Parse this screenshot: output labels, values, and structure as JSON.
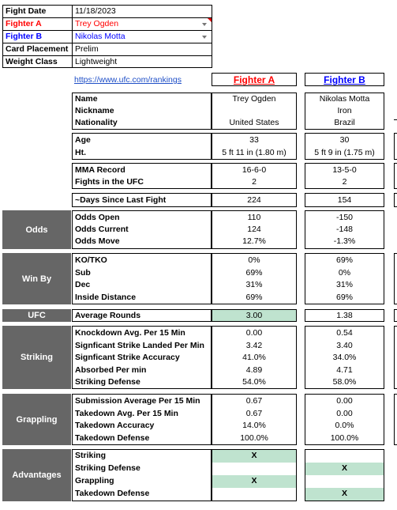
{
  "info": {
    "rows": [
      {
        "label": "Fight Date",
        "value": "11/18/2023"
      },
      {
        "label": "Fighter A",
        "value": "Trey Ogden"
      },
      {
        "label": "Fighter B",
        "value": "Nikolas Motta"
      },
      {
        "label": "Card Placement",
        "value": "Prelim"
      },
      {
        "label": "Weight Class",
        "value": "Lightweight"
      }
    ]
  },
  "header": {
    "link": "https://www.ufc.com/rankings",
    "fighter_a": "Fighter A",
    "fighter_b": "Fighter B"
  },
  "sections": {
    "bio": {
      "labels": [
        "Name",
        "Nickname",
        "Nationality"
      ],
      "a": [
        "Trey Ogden",
        "",
        "United States"
      ],
      "b": [
        "Nikolas Motta",
        "Iron",
        "Brazil"
      ]
    },
    "physical": {
      "labels": [
        "Age",
        "Ht."
      ],
      "a": [
        "33",
        "5 ft 11 in (1.80 m)"
      ],
      "b": [
        "30",
        "5 ft 9 in (1.75 m)"
      ]
    },
    "record": {
      "labels": [
        "MMA Record",
        "Fights in the UFC"
      ],
      "a": [
        "16-6-0",
        "2"
      ],
      "b": [
        "13-5-0",
        "2"
      ]
    },
    "days": {
      "labels": [
        "~Days Since Last Fight"
      ],
      "a": [
        "224"
      ],
      "b": [
        "154"
      ]
    },
    "odds": {
      "title": "Odds",
      "labels": [
        "Odds Open",
        "Odds Current",
        "Odds Move"
      ],
      "a": [
        "110",
        "124",
        "12.7%"
      ],
      "b": [
        "-150",
        "-148",
        "-1.3%"
      ]
    },
    "winby": {
      "title": "Win By",
      "labels": [
        "KO/TKO",
        "Sub",
        "Dec",
        "Inside Distance"
      ],
      "a": [
        "0%",
        "69%",
        "31%",
        "69%"
      ],
      "b": [
        "69%",
        "0%",
        "31%",
        "69%"
      ]
    },
    "ufc": {
      "title": "UFC",
      "labels": [
        "Average Rounds"
      ],
      "a": [
        "3.00"
      ],
      "b": [
        "1.38"
      ]
    },
    "striking": {
      "title": "Striking",
      "labels": [
        "Knockdown Avg. Per 15 Min",
        "Signficant Strike Landed Per Min",
        "Signficant Strike Accuracy",
        "Absorbed Per min",
        "Striking Defense"
      ],
      "a": [
        "0.00",
        "3.42",
        "41.0%",
        "4.89",
        "54.0%"
      ],
      "b": [
        "0.54",
        "3.40",
        "34.0%",
        "4.71",
        "58.0%"
      ]
    },
    "grappling": {
      "title": "Grappling",
      "labels": [
        "Submission Average  Per 15 Min",
        "Takedown Avg. Per 15 Min",
        "Takedown Accuracy",
        "Takedown Defense"
      ],
      "a": [
        "0.67",
        "0.67",
        "14.0%",
        "100.0%"
      ],
      "b": [
        "0.00",
        "0.00",
        "0.0%",
        "100.0%"
      ]
    },
    "advantages": {
      "title": "Advantages",
      "labels": [
        "Striking",
        "Striking Defense",
        "Grappling",
        "Takedown Defense"
      ],
      "a": [
        "X",
        "",
        "X",
        ""
      ],
      "b": [
        "",
        "X",
        "",
        "X"
      ]
    }
  },
  "colors": {
    "fighter_a": "#ff0000",
    "fighter_b": "#0000ff",
    "section_bg": "#666666",
    "highlight": "#bfe3cf",
    "link": "#1f4fc7"
  }
}
